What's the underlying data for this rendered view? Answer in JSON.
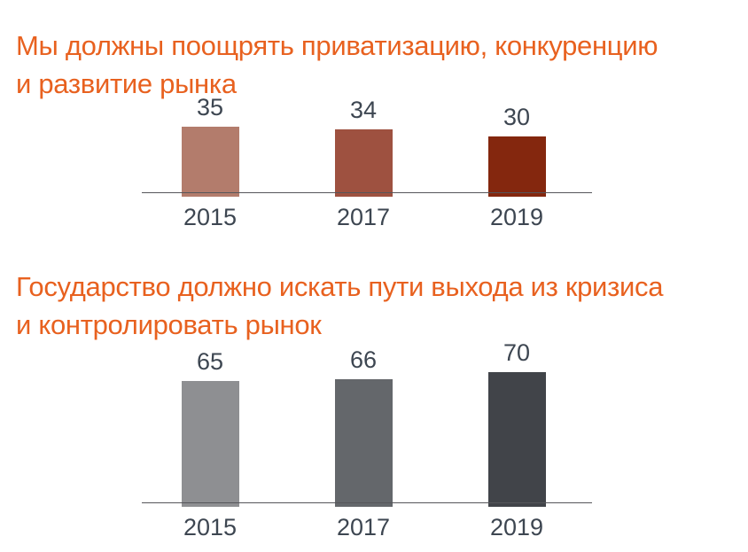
{
  "styles": {
    "background": "#ffffff",
    "label_color": "#3d4651",
    "axis_color": "#55565a"
  },
  "chart_data": [
    {
      "type": "bar",
      "title": "Мы должны поощрять приватизацию, конкуренцию и развитие рынка",
      "title_lines": [
        "Мы должны поощрять приватизацию, конкуренцию",
        "и развитие рынка"
      ],
      "title_color": "#e8611f",
      "categories": [
        "2015",
        "2017",
        "2019"
      ],
      "values": [
        35,
        34,
        30
      ],
      "bar_colors": [
        "#b37c6c",
        "#9e5140",
        "#84270e"
      ],
      "data_labels": true,
      "xlabel": "",
      "ylabel": "",
      "grid": false,
      "legend": false
    },
    {
      "type": "bar",
      "title": "Государство должно искать пути выхода из кризиса и контролировать рынок",
      "title_lines": [
        "Государство должно искать пути выхода из кризиса",
        "и контролировать рынок"
      ],
      "title_color": "#e8611f",
      "categories": [
        "2015",
        "2017",
        "2019"
      ],
      "values": [
        65,
        66,
        70
      ],
      "bar_colors": [
        "#8e8f92",
        "#64676b",
        "#414449"
      ],
      "data_labels": true,
      "xlabel": "",
      "ylabel": "",
      "grid": false,
      "legend": false
    }
  ]
}
